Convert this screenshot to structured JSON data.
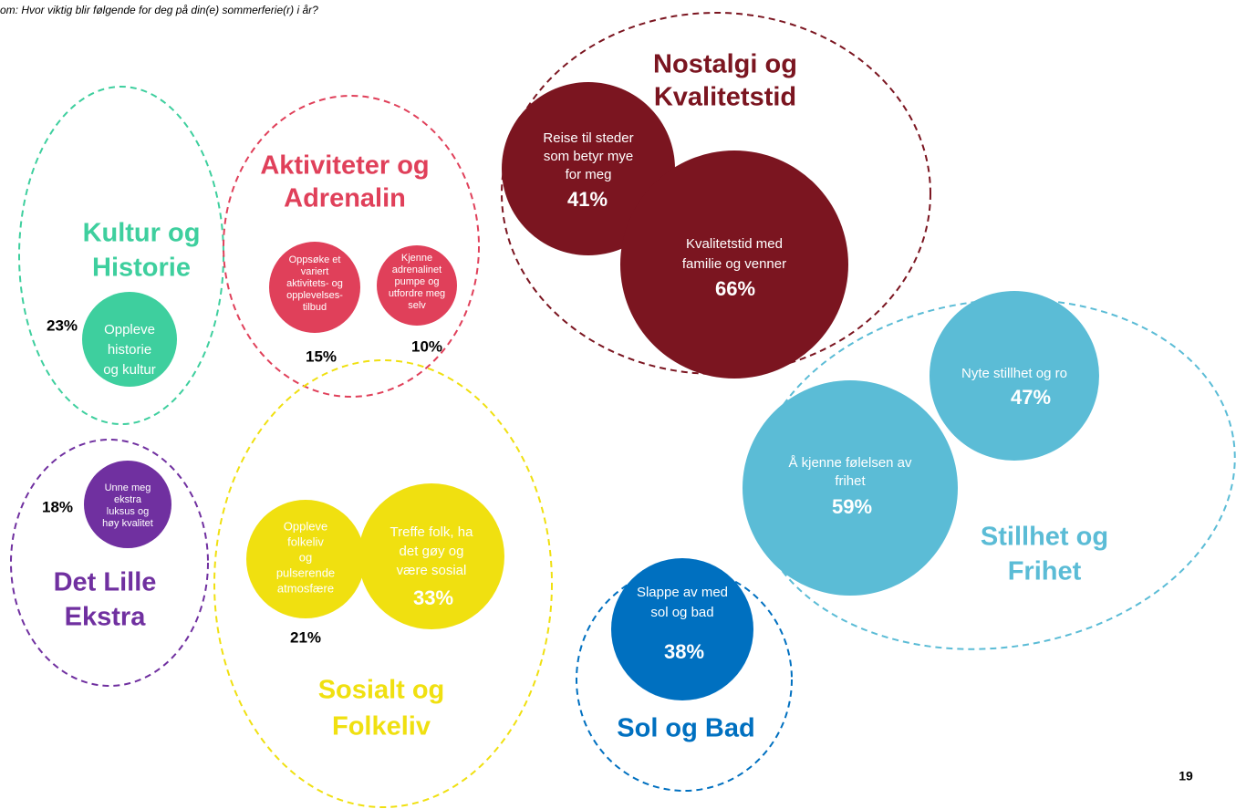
{
  "subtitle": "om: Hvor viktig blir følgende for deg på din(e) sommerferie(r) i år?",
  "page_number": "19",
  "groups": [
    {
      "title": [
        "Kultur og",
        "Historie"
      ],
      "color": "#3ecf9e",
      "items": [
        {
          "label": [
            "Oppleve",
            "historie",
            "og kultur"
          ],
          "value": "23%"
        }
      ]
    },
    {
      "title": [
        "Aktiviteter og",
        "Adrenalin"
      ],
      "color": "#e0405a",
      "items": [
        {
          "label": [
            "Oppsøke et",
            "variert",
            "aktivitets- og",
            "opplevelses-",
            "tilbud"
          ],
          "value": "15%"
        },
        {
          "label": [
            "Kjenne",
            "adrenalinet",
            "pumpe og",
            "utfordre meg",
            "selv"
          ],
          "value": "10%"
        }
      ]
    },
    {
      "title": [
        "Nostalgi og",
        "Kvalitetstid"
      ],
      "color": "#7b1520",
      "items": [
        {
          "label": [
            "Reise til steder",
            "som betyr mye",
            "for meg"
          ],
          "value": "41%"
        },
        {
          "label": [
            "Kvalitetstid med",
            "familie og venner"
          ],
          "value": "66%"
        }
      ]
    },
    {
      "title": [
        "Stillhet og",
        "Frihet"
      ],
      "color": "#5bbcd6",
      "items": [
        {
          "label": [
            "Nyte stillhet og ro"
          ],
          "value": "47%"
        },
        {
          "label": [
            "Å kjenne følelsen av",
            "frihet"
          ],
          "value": "59%"
        }
      ]
    },
    {
      "title": [
        "Det Lille",
        "Ekstra"
      ],
      "color": "#7030a0",
      "items": [
        {
          "label": [
            "Unne meg",
            "ekstra",
            "luksus og",
            "høy kvalitet"
          ],
          "value": "18%"
        }
      ]
    },
    {
      "title": [
        "Sosialt og",
        "Folkeliv"
      ],
      "color": "#f0e010",
      "items": [
        {
          "label": [
            "Oppleve",
            "folkeliv",
            "og",
            "pulserende",
            "atmosfære"
          ],
          "value": "21%"
        },
        {
          "label": [
            "Treffe folk, ha",
            "det gøy og",
            "være sosial"
          ],
          "value": "33%"
        }
      ]
    },
    {
      "title": [
        "Sol og Bad"
      ],
      "color": "#0070c0",
      "items": [
        {
          "label": [
            "Slappe av med",
            "sol og bad"
          ],
          "value": "38%"
        }
      ]
    }
  ]
}
